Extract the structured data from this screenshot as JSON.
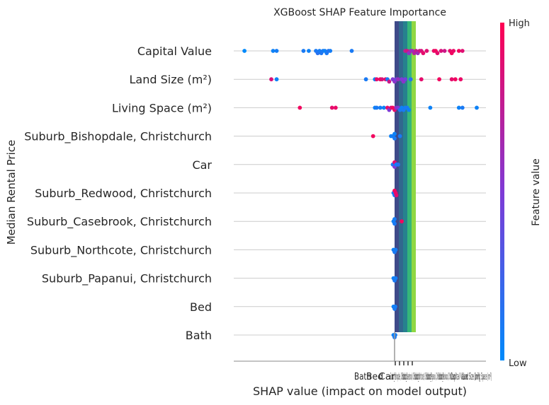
{
  "chart_data": {
    "type": "scatter",
    "title": "XGBoost SHAP Feature Importance",
    "xlabel": "SHAP value (impact on model output)",
    "ylabel": "Median Rental Price",
    "xlim": [
      -0.45,
      0.27
    ],
    "colorbar": {
      "title": "Feature value",
      "high_label": "High",
      "low_label": "Low",
      "low_color": "#008afb",
      "mid_color": "#7f3ad6",
      "high_color": "#ff0052"
    },
    "colors": {
      "gridline": "#cccccc",
      "zero_line": "#999999",
      "axis": "#888888"
    },
    "features": [
      "Capital Value",
      "Land Size (m²)",
      "Living Space (m²)",
      "Suburb_Bishopdale, Christchurch",
      "Car",
      "Suburb_Redwood, Christchurch",
      "Suburb_Casebrook, Christchurch",
      "Suburb_Northcote, Christchurch",
      "Suburb_Papanui, Christchurch",
      "Bed",
      "Bath"
    ],
    "rows": [
      {
        "feature": "Capital Value",
        "points": [
          {
            "x": -0.42,
            "v": 0.0
          },
          {
            "x": -0.34,
            "v": 0.05
          },
          {
            "x": -0.33,
            "v": 0.08
          },
          {
            "x": -0.255,
            "v": 0.1
          },
          {
            "x": -0.24,
            "v": 0.05
          },
          {
            "x": -0.22,
            "v": 0.1
          },
          {
            "x": -0.215,
            "v": 0.15
          },
          {
            "x": -0.21,
            "v": 0.08
          },
          {
            "x": -0.205,
            "v": 0.12
          },
          {
            "x": -0.2,
            "v": 0.1
          },
          {
            "x": -0.195,
            "v": 0.05
          },
          {
            "x": -0.19,
            "v": 0.1
          },
          {
            "x": -0.185,
            "v": 0.15
          },
          {
            "x": -0.18,
            "v": 0.08
          },
          {
            "x": -0.12,
            "v": 0.1
          },
          {
            "x": 0.03,
            "v": 0.75
          },
          {
            "x": 0.035,
            "v": 0.82
          },
          {
            "x": 0.04,
            "v": 0.55
          },
          {
            "x": 0.045,
            "v": 0.65
          },
          {
            "x": 0.05,
            "v": 0.6
          },
          {
            "x": 0.055,
            "v": 0.7
          },
          {
            "x": 0.06,
            "v": 0.78
          },
          {
            "x": 0.065,
            "v": 0.62
          },
          {
            "x": 0.07,
            "v": 0.8
          },
          {
            "x": 0.075,
            "v": 0.85
          },
          {
            "x": 0.08,
            "v": 0.9
          },
          {
            "x": 0.09,
            "v": 0.88
          },
          {
            "x": 0.11,
            "v": 0.92
          },
          {
            "x": 0.115,
            "v": 0.95
          },
          {
            "x": 0.12,
            "v": 0.9
          },
          {
            "x": 0.13,
            "v": 0.85
          },
          {
            "x": 0.14,
            "v": 0.8
          },
          {
            "x": 0.155,
            "v": 0.9
          },
          {
            "x": 0.16,
            "v": 0.95
          },
          {
            "x": 0.165,
            "v": 0.92
          },
          {
            "x": 0.18,
            "v": 0.95
          },
          {
            "x": 0.19,
            "v": 0.88
          }
        ]
      },
      {
        "feature": "Land Size (m²)",
        "points": [
          {
            "x": -0.345,
            "v": 0.85
          },
          {
            "x": -0.33,
            "v": 0.05
          },
          {
            "x": -0.08,
            "v": 0.1
          },
          {
            "x": -0.055,
            "v": 0.05
          },
          {
            "x": -0.05,
            "v": 0.9
          },
          {
            "x": -0.04,
            "v": 0.95
          },
          {
            "x": -0.035,
            "v": 0.85
          },
          {
            "x": -0.025,
            "v": 0.9
          },
          {
            "x": -0.02,
            "v": 0.1
          },
          {
            "x": -0.015,
            "v": 0.8
          },
          {
            "x": -0.005,
            "v": 0.5
          },
          {
            "x": 0.0,
            "v": 0.55
          },
          {
            "x": 0.005,
            "v": 0.45
          },
          {
            "x": 0.01,
            "v": 0.6
          },
          {
            "x": 0.02,
            "v": 0.5
          },
          {
            "x": 0.025,
            "v": 0.55
          },
          {
            "x": 0.03,
            "v": 0.45
          },
          {
            "x": 0.045,
            "v": 0.15
          },
          {
            "x": 0.075,
            "v": 0.9
          },
          {
            "x": 0.125,
            "v": 0.95
          },
          {
            "x": 0.16,
            "v": 0.9
          },
          {
            "x": 0.17,
            "v": 0.95
          },
          {
            "x": 0.185,
            "v": 0.92
          }
        ]
      },
      {
        "feature": "Living Space (m²)",
        "points": [
          {
            "x": -0.265,
            "v": 0.95
          },
          {
            "x": -0.175,
            "v": 0.9
          },
          {
            "x": -0.165,
            "v": 0.92
          },
          {
            "x": -0.055,
            "v": 0.05
          },
          {
            "x": -0.05,
            "v": 0.1
          },
          {
            "x": -0.04,
            "v": 0.08
          },
          {
            "x": -0.03,
            "v": 0.05
          },
          {
            "x": -0.02,
            "v": 0.9
          },
          {
            "x": -0.015,
            "v": 0.5
          },
          {
            "x": -0.01,
            "v": 0.85
          },
          {
            "x": -0.005,
            "v": 0.95
          },
          {
            "x": 0.0,
            "v": 0.9
          },
          {
            "x": 0.005,
            "v": 0.55
          },
          {
            "x": 0.01,
            "v": 0.5
          },
          {
            "x": 0.015,
            "v": 0.1
          },
          {
            "x": 0.02,
            "v": 0.05
          },
          {
            "x": 0.025,
            "v": 0.1
          },
          {
            "x": 0.03,
            "v": 0.08
          },
          {
            "x": 0.035,
            "v": 0.1
          },
          {
            "x": 0.04,
            "v": 0.05
          },
          {
            "x": 0.1,
            "v": 0.05
          },
          {
            "x": 0.18,
            "v": 0.05
          },
          {
            "x": 0.19,
            "v": 0.1
          },
          {
            "x": 0.23,
            "v": 0.05
          }
        ]
      },
      {
        "feature": "Suburb_Bishopdale, Christchurch",
        "points": [
          {
            "x": -0.06,
            "v": 0.95
          },
          {
            "x": -0.01,
            "v": 0.05
          },
          {
            "x": -0.005,
            "v": 0.08
          },
          {
            "x": 0.0,
            "v": 0.1
          },
          {
            "x": 0.0,
            "v": 0.05
          },
          {
            "x": 0.015,
            "v": 0.1
          }
        ]
      },
      {
        "feature": "Car",
        "points": [
          {
            "x": -0.005,
            "v": 0.1
          },
          {
            "x": 0.0,
            "v": 0.5
          },
          {
            "x": 0.0,
            "v": 0.9
          },
          {
            "x": 0.005,
            "v": 0.05
          },
          {
            "x": 0.01,
            "v": 0.15
          }
        ]
      },
      {
        "feature": "Suburb_Redwood, Christchurch",
        "points": [
          {
            "x": -0.003,
            "v": 0.05
          },
          {
            "x": 0.0,
            "v": 0.1
          },
          {
            "x": 0.0,
            "v": 0.95
          },
          {
            "x": 0.003,
            "v": 0.92
          },
          {
            "x": 0.005,
            "v": 0.9
          }
        ]
      },
      {
        "feature": "Suburb_Casebrook, Christchurch",
        "points": [
          {
            "x": -0.003,
            "v": 0.05
          },
          {
            "x": 0.0,
            "v": 0.1
          },
          {
            "x": 0.0,
            "v": 0.08
          },
          {
            "x": 0.02,
            "v": 0.95
          }
        ]
      },
      {
        "feature": "Suburb_Northcote, Christchurch",
        "points": [
          {
            "x": -0.003,
            "v": 0.05
          },
          {
            "x": 0.0,
            "v": 0.1
          },
          {
            "x": 0.003,
            "v": 0.08
          }
        ]
      },
      {
        "feature": "Suburb_Papanui, Christchurch",
        "points": [
          {
            "x": -0.003,
            "v": 0.05
          },
          {
            "x": 0.0,
            "v": 0.1
          },
          {
            "x": 0.003,
            "v": 0.08
          }
        ]
      },
      {
        "feature": "Bed",
        "points": [
          {
            "x": -0.003,
            "v": 0.05
          },
          {
            "x": 0.0,
            "v": 0.1
          },
          {
            "x": 0.002,
            "v": 0.08
          }
        ]
      },
      {
        "feature": "Bath",
        "points": [
          {
            "x": -0.003,
            "v": 0.05
          },
          {
            "x": 0.0,
            "v": 0.1
          },
          {
            "x": 0.002,
            "v": 0.08
          }
        ]
      }
    ],
    "overlay_bars": [
      {
        "color": "#3e4a89"
      },
      {
        "color": "#31688e"
      },
      {
        "color": "#26828e"
      },
      {
        "color": "#35b779"
      },
      {
        "color": "#90d743"
      }
    ],
    "xtick_labels": [
      "Bath",
      "Bed",
      "Car",
      "Suburb_Bishopdale, Christchurch",
      "Suburb_Casebrook, Christchurch",
      "Suburb_Northcote, Christchurch",
      "Suburb_Papanui, Christchurch",
      "Suburb_Redwood, Christchurch",
      "Capital Value",
      "Land Size (m²)",
      "Living Space (m²)"
    ]
  }
}
